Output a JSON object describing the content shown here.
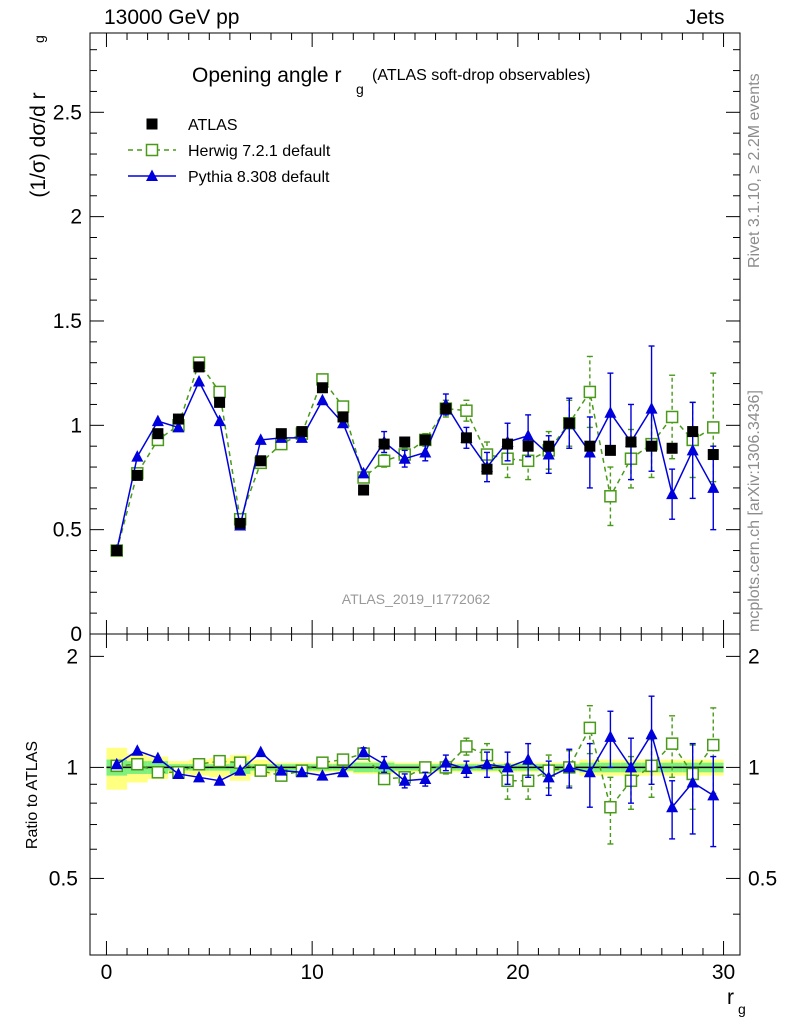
{
  "header": {
    "energy": "13000 GeV pp",
    "category": "Jets"
  },
  "side_labels": {
    "rivet": "Rivet 3.1.10, ≥ 2.2M events",
    "mcplots": "mcplots.cern.ch [arXiv:1306.3436]"
  },
  "colors": {
    "atlas": "#000000",
    "herwig": "#4a9a1a",
    "pythia": "#0000dd",
    "band_inner": "#7ef07e",
    "band_outer": "#ffff80",
    "watermark": "#999999"
  },
  "chart_data": {
    "type": "scatter",
    "title": "Opening angle r",
    "title_sub": "g",
    "title_tail": "(ATLAS soft-drop observables)",
    "analysis_label": "ATLAS_2019_I1772062",
    "xlabel": "r",
    "xlabel_sub": "g",
    "ylabel": "(1/σ) dσ/d r",
    "ylabel_sub": "g",
    "ratio_ylabel": "Ratio to ATLAS",
    "xlim": [
      -0.8,
      30.8
    ],
    "ylim": [
      0,
      2.88
    ],
    "ratio_ylim": [
      0.31,
      2.3
    ],
    "xticks": [
      0,
      10,
      20,
      30
    ],
    "xtick_labels": [
      "0",
      "10",
      "20",
      "30"
    ],
    "yticks": [
      0,
      0.5,
      1,
      1.5,
      2,
      2.5
    ],
    "ytick_labels": [
      "0",
      "0.5",
      "1",
      "1.5",
      "2",
      "2.5"
    ],
    "ratio_yticks": [
      0.5,
      1,
      2
    ],
    "ratio_ytick_labels": [
      "0.5",
      "1",
      "2"
    ],
    "x": [
      0.5,
      1.5,
      2.5,
      3.5,
      4.5,
      5.5,
      6.5,
      7.5,
      8.5,
      9.5,
      10.5,
      11.5,
      12.5,
      13.5,
      14.5,
      15.5,
      16.5,
      17.5,
      18.5,
      19.5,
      20.5,
      21.5,
      22.5,
      23.5,
      24.5,
      25.5,
      26.5,
      27.5,
      28.5,
      29.5
    ],
    "series": [
      {
        "name": "ATLAS",
        "marker": "filled-square",
        "values": [
          0.4,
          0.76,
          0.96,
          1.03,
          1.28,
          1.11,
          0.53,
          0.83,
          0.96,
          0.97,
          1.18,
          1.04,
          0.69,
          0.91,
          0.92,
          0.93,
          1.08,
          0.94,
          0.79,
          0.91,
          0.9,
          0.9,
          1.01,
          0.9,
          0.88,
          0.92,
          0.9,
          0.89,
          0.97,
          0.86
        ]
      },
      {
        "name": "Herwig 7.2.1 default",
        "marker": "open-square",
        "line": "dashed",
        "values": [
          0.4,
          0.77,
          0.93,
          1.0,
          1.3,
          1.16,
          0.55,
          0.82,
          0.91,
          0.96,
          1.22,
          1.09,
          0.75,
          0.83,
          0.86,
          0.93,
          1.08,
          1.07,
          0.86,
          0.84,
          0.83,
          0.88,
          1.01,
          1.16,
          0.66,
          0.84,
          0.91,
          1.04,
          0.93,
          0.99
        ],
        "errors": [
          0.01,
          0.01,
          0.01,
          0.01,
          0.01,
          0.01,
          0.01,
          0.01,
          0.01,
          0.01,
          0.01,
          0.01,
          0.02,
          0.03,
          0.03,
          0.03,
          0.04,
          0.05,
          0.06,
          0.09,
          0.09,
          0.09,
          0.11,
          0.17,
          0.14,
          0.14,
          0.16,
          0.2,
          0.18,
          0.26
        ]
      },
      {
        "name": "Pythia 8.308 default",
        "marker": "filled-triangle",
        "line": "solid",
        "values": [
          0.4,
          0.85,
          1.02,
          0.99,
          1.21,
          1.02,
          0.52,
          0.93,
          0.94,
          0.94,
          1.12,
          1.01,
          0.77,
          0.92,
          0.84,
          0.87,
          1.1,
          0.94,
          0.8,
          0.92,
          0.95,
          0.86,
          1.01,
          0.87,
          1.06,
          0.92,
          1.08,
          0.67,
          0.88,
          0.7
        ],
        "errors": [
          0.01,
          0.01,
          0.01,
          0.01,
          0.01,
          0.01,
          0.01,
          0.01,
          0.01,
          0.01,
          0.01,
          0.01,
          0.02,
          0.05,
          0.04,
          0.04,
          0.05,
          0.05,
          0.07,
          0.09,
          0.1,
          0.09,
          0.12,
          0.17,
          0.19,
          0.18,
          0.3,
          0.12,
          0.23,
          0.2
        ]
      }
    ],
    "ratio_series": [
      {
        "name": "Herwig 7.2.1 default",
        "values": [
          1.01,
          1.02,
          0.97,
          0.97,
          1.02,
          1.04,
          1.03,
          0.98,
          0.95,
          0.98,
          1.03,
          1.05,
          1.09,
          0.93,
          0.94,
          1.0,
          1.0,
          1.14,
          1.08,
          0.92,
          0.92,
          0.98,
          1.0,
          1.28,
          0.78,
          0.92,
          1.01,
          1.16,
          0.96,
          1.15
        ],
        "errors": [
          0.01,
          0.01,
          0.01,
          0.01,
          0.01,
          0.01,
          0.01,
          0.01,
          0.01,
          0.01,
          0.01,
          0.01,
          0.03,
          0.03,
          0.03,
          0.03,
          0.04,
          0.06,
          0.08,
          0.1,
          0.1,
          0.1,
          0.11,
          0.19,
          0.16,
          0.15,
          0.18,
          0.22,
          0.19,
          0.3
        ]
      },
      {
        "name": "Pythia 8.308 default",
        "values": [
          1.02,
          1.11,
          1.06,
          0.96,
          0.94,
          0.92,
          0.98,
          1.1,
          0.98,
          0.97,
          0.95,
          0.97,
          1.1,
          1.02,
          0.92,
          0.93,
          1.03,
          0.99,
          1.02,
          1.0,
          1.05,
          0.94,
          1.0,
          0.97,
          1.21,
          1.0,
          1.23,
          0.78,
          0.91,
          0.84
        ],
        "errors": [
          0.01,
          0.01,
          0.01,
          0.01,
          0.01,
          0.01,
          0.01,
          0.01,
          0.01,
          0.01,
          0.01,
          0.01,
          0.03,
          0.05,
          0.04,
          0.04,
          0.05,
          0.05,
          0.08,
          0.1,
          0.11,
          0.1,
          0.12,
          0.19,
          0.21,
          0.2,
          0.33,
          0.14,
          0.25,
          0.23
        ]
      }
    ],
    "ratio_band": {
      "inner": [
        0.05,
        0.04,
        0.04,
        0.02,
        0.02,
        0.02,
        0.04,
        0.02,
        0.02,
        0.02,
        0.02,
        0.02,
        0.03,
        0.03,
        0.02,
        0.02,
        0.02,
        0.02,
        0.02,
        0.02,
        0.02,
        0.02,
        0.02,
        0.03,
        0.03,
        0.03,
        0.03,
        0.03,
        0.03,
        0.03
      ],
      "outer": [
        0.13,
        0.09,
        0.07,
        0.04,
        0.05,
        0.06,
        0.08,
        0.05,
        0.03,
        0.03,
        0.03,
        0.03,
        0.04,
        0.04,
        0.03,
        0.03,
        0.03,
        0.03,
        0.03,
        0.03,
        0.03,
        0.03,
        0.03,
        0.05,
        0.05,
        0.05,
        0.05,
        0.05,
        0.05,
        0.05
      ]
    }
  }
}
